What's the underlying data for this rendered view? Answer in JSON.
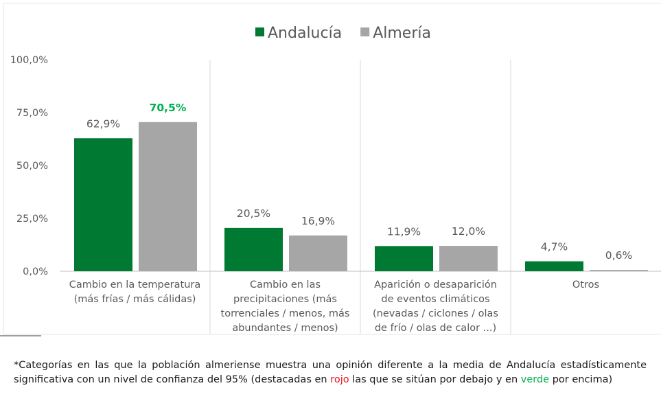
{
  "chart_data": {
    "type": "bar",
    "categories": [
      [
        "Cambio en la temperatura",
        "(más frías / más cálidas)"
      ],
      [
        "Cambio en las",
        "precipitaciones (más",
        "torrenciales / menos, más",
        "abundantes / menos)"
      ],
      [
        "Aparición o desaparición",
        "de eventos climáticos",
        "(nevadas / ciclones / olas",
        "de frío / olas de calor ...)"
      ],
      [
        "Otros"
      ]
    ],
    "series": [
      {
        "name": "Andalucía",
        "color": "#007a33",
        "values": [
          62.9,
          20.5,
          11.9,
          4.7
        ],
        "value_labels": [
          "62,9%",
          "20,5%",
          "11,9%",
          "4,7%"
        ],
        "value_label_colors": [
          "#595959",
          "#595959",
          "#595959",
          "#595959"
        ]
      },
      {
        "name": "Almería",
        "color": "#a6a6a6",
        "values": [
          70.5,
          16.9,
          12.0,
          0.6
        ],
        "value_labels": [
          "70,5%",
          "16,9%",
          "12,0%",
          "0,6%"
        ],
        "value_label_colors": [
          "#00b050",
          "#595959",
          "#595959",
          "#595959"
        ]
      }
    ],
    "ylim": [
      0,
      100
    ],
    "yticks": [
      {
        "value": 0,
        "label": "0,0%"
      },
      {
        "value": 25,
        "label": "25,0%"
      },
      {
        "value": 50,
        "label": "50,0%"
      },
      {
        "value": 75,
        "label": "75,0%"
      },
      {
        "value": 100,
        "label": "100,0%"
      }
    ],
    "legend": "top",
    "grid": false
  },
  "note": [
    "*Categorías en las que la población almeriense muestra una opinión diferente a la media de Andalucía estadísticamente significativa con un nivel de confianza del 95% (destacadas en ",
    "rojo",
    " las que se sitúan por debajo y en ",
    "verde",
    " por encima)"
  ]
}
